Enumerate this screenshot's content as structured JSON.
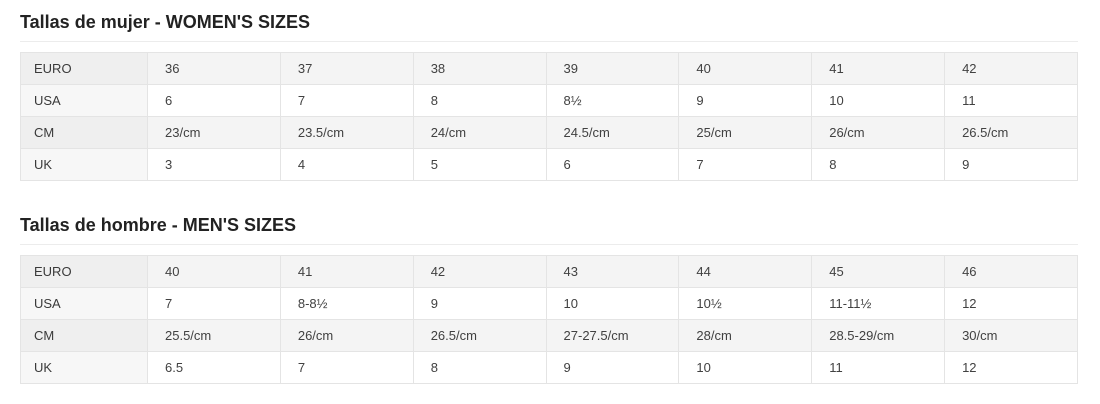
{
  "colors": {
    "page_background": "#ffffff",
    "title_text": "#222222",
    "cell_text": "#414141",
    "stripe_odd_row": "#f4f4f4",
    "label_column": "#f7f7f7",
    "label_column_odd_row": "#efefef",
    "cell_border": "#e4e4e4",
    "title_divider": "#ececec"
  },
  "sections": [
    {
      "title": "Tallas de mujer - WOMEN'S SIZES",
      "table": {
        "rows": [
          {
            "label": "EURO",
            "values": [
              "36",
              "37",
              "38",
              "39",
              "40",
              "41",
              "42"
            ]
          },
          {
            "label": "USA",
            "values": [
              "6",
              "7",
              "8",
              "8½",
              "9",
              "10",
              "11"
            ]
          },
          {
            "label": "CM",
            "values": [
              "23/cm",
              "23.5/cm",
              "24/cm",
              "24.5/cm",
              "25/cm",
              "26/cm",
              "26.5/cm"
            ]
          },
          {
            "label": "UK",
            "values": [
              "3",
              "4",
              "5",
              "6",
              "7",
              "8",
              "9"
            ]
          }
        ]
      }
    },
    {
      "title": "Tallas de hombre - MEN'S SIZES",
      "table": {
        "rows": [
          {
            "label": "EURO",
            "values": [
              "40",
              "41",
              "42",
              "43",
              "44",
              "45",
              "46"
            ]
          },
          {
            "label": "USA",
            "values": [
              "7",
              "8-8½",
              "9",
              "10",
              "10½",
              "11-11½",
              "12"
            ]
          },
          {
            "label": "CM",
            "values": [
              "25.5/cm",
              "26/cm",
              "26.5/cm",
              "27-27.5/cm",
              "28/cm",
              "28.5-29/cm",
              "30/cm"
            ]
          },
          {
            "label": "UK",
            "values": [
              "6.5",
              "7",
              "8",
              "9",
              "10",
              "11",
              "12"
            ]
          }
        ]
      }
    }
  ]
}
